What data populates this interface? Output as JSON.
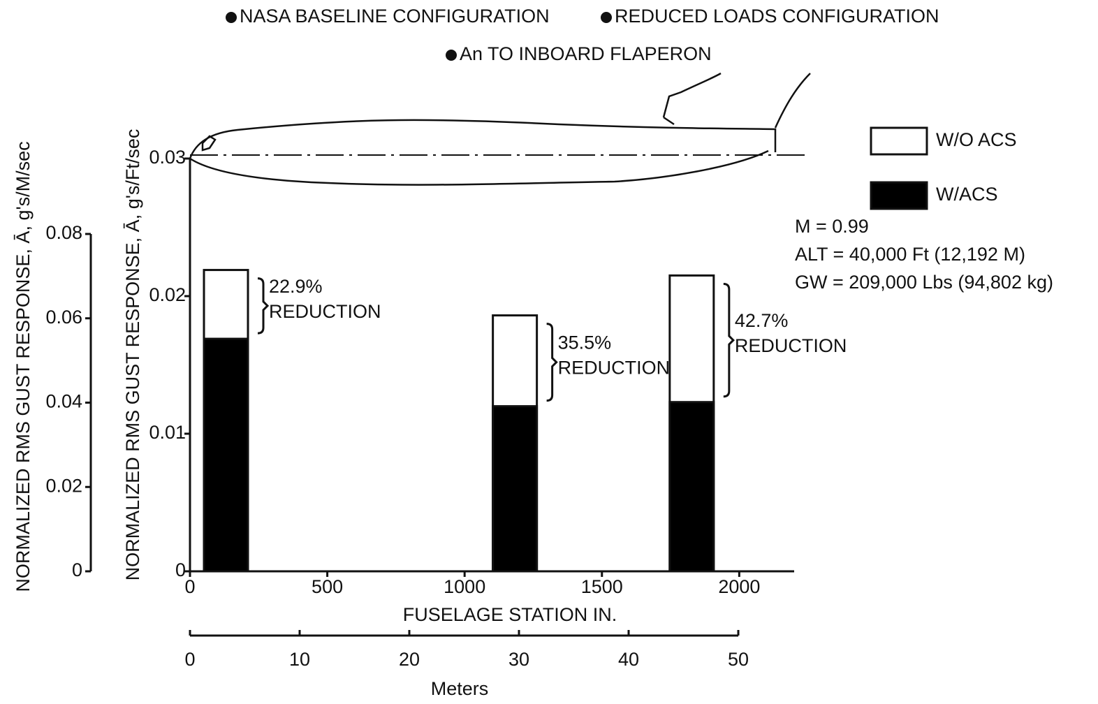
{
  "chart_data": {
    "type": "bar",
    "header": [
      "NASA BASELINE CONFIGURATION",
      "REDUCED LOADS CONFIGURATION",
      "An TO INBOARD FLAPERON"
    ],
    "x_label": "FUSELAGE STATION    IN.",
    "y_label": "NORMALIZED RMS GUST RESPONSE, Ā, g's/Ft/sec",
    "y2_label": "NORMALIZED RMS GUST RESPONSE, Ā, g's/M/sec",
    "x2_label": "Meters",
    "x": [
      131,
      1183,
      1827
    ],
    "series": [
      {
        "name": "W/O ACS",
        "color": "#ffffff",
        "values": [
          0.0219,
          0.0186,
          0.0215
        ]
      },
      {
        "name": "W/ACS",
        "color": "#000000",
        "values": [
          0.0169,
          0.012,
          0.0123
        ]
      }
    ],
    "annotations": [
      {
        "percent": "22.9%",
        "text": "REDUCTION"
      },
      {
        "percent": "35.5%",
        "text": "REDUCTION"
      },
      {
        "percent": "42.7%",
        "text": "REDUCTION"
      }
    ],
    "conditions": [
      "M = 0.99",
      "ALT = 40,000 Ft (12,192 M)",
      "GW = 209,000 Lbs (94,802 kg)"
    ],
    "xlim": [
      0,
      2200
    ],
    "xticks": [
      0,
      500,
      1000,
      1500,
      2000
    ],
    "ylim": [
      0,
      0.03
    ],
    "yticks": [
      0,
      0.01,
      0.02,
      0.03
    ],
    "y2lim": [
      0,
      0.08
    ],
    "y2ticks": [
      0,
      0.02,
      0.04,
      0.06,
      0.08
    ],
    "x2lim": [
      0,
      50
    ],
    "x2ticks": [
      0,
      10,
      20,
      30,
      40,
      50
    ],
    "grid": false
  }
}
